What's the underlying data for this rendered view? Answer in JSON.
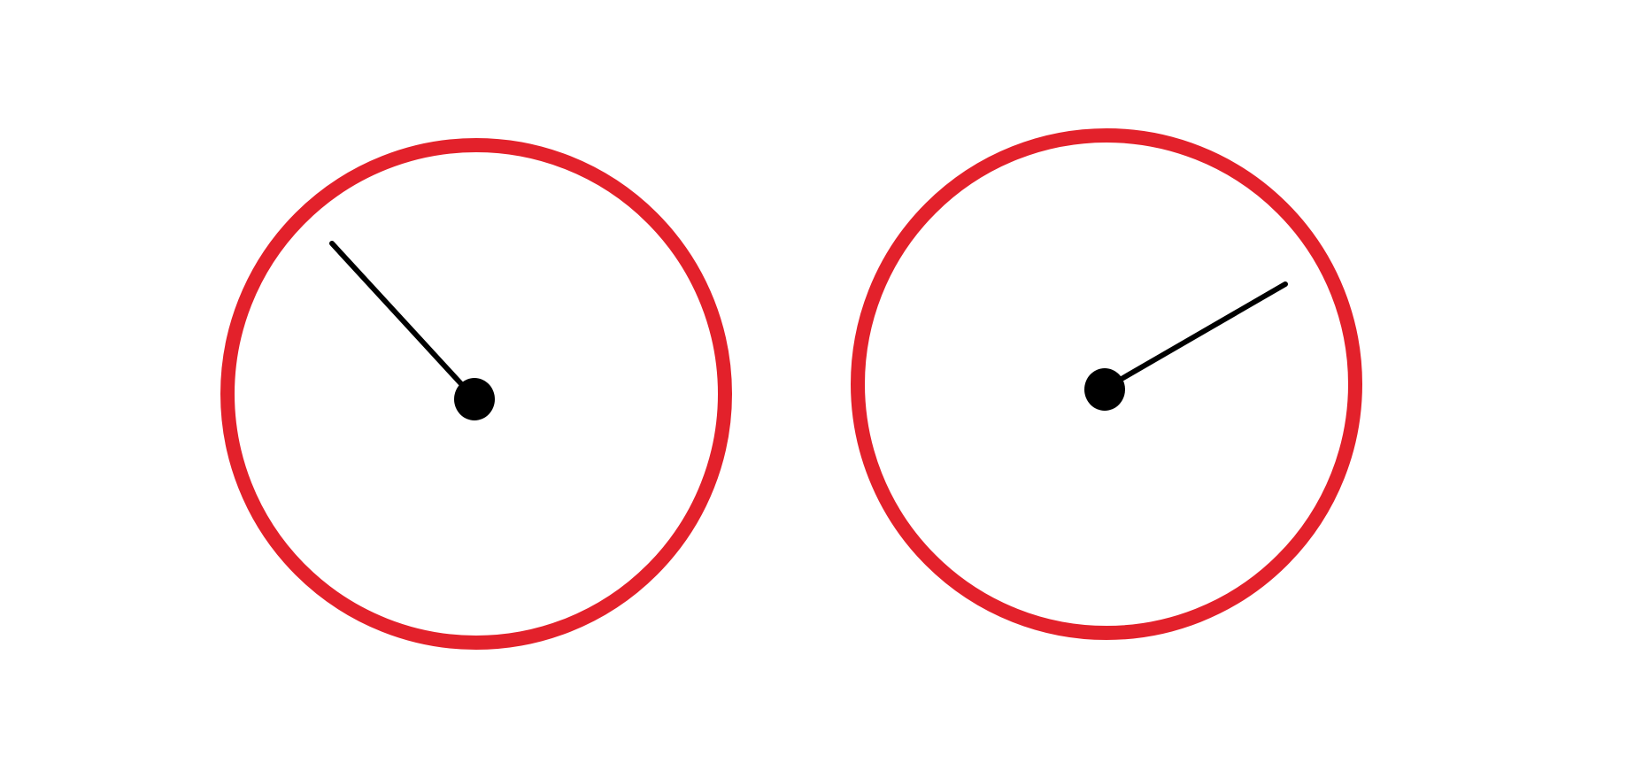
{
  "colors": {
    "background": "#ffffff",
    "ring": "#e3212b",
    "hand": "#000000",
    "hub": "#000000"
  },
  "dials": [
    {
      "id": "left",
      "hand_direction": "upper-left"
    },
    {
      "id": "right",
      "hand_direction": "upper-right"
    }
  ]
}
